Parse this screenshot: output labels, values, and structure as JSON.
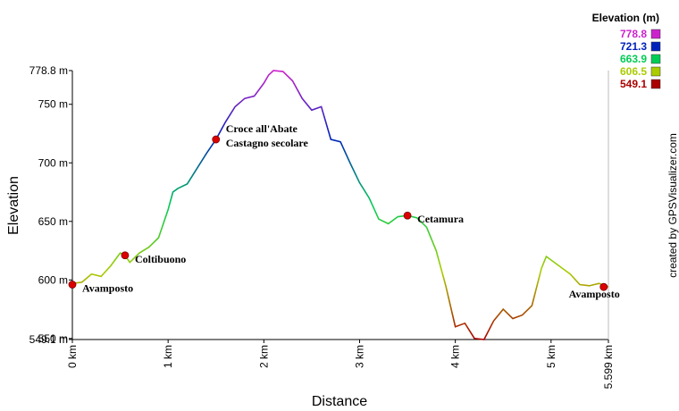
{
  "chart_data": {
    "type": "line",
    "x_label": "Distance",
    "y_label": "Elevation",
    "credit": "created by GPSVisualizer.com",
    "x": [
      0,
      0.1,
      0.2,
      0.3,
      0.4,
      0.5,
      0.55,
      0.6,
      0.7,
      0.8,
      0.9,
      1.0,
      1.05,
      1.1,
      1.2,
      1.3,
      1.4,
      1.5,
      1.6,
      1.7,
      1.8,
      1.9,
      2.0,
      2.05,
      2.1,
      2.2,
      2.3,
      2.4,
      2.5,
      2.6,
      2.7,
      2.8,
      2.9,
      3.0,
      3.1,
      3.2,
      3.3,
      3.4,
      3.5,
      3.6,
      3.7,
      3.8,
      3.9,
      4.0,
      4.1,
      4.2,
      4.3,
      4.4,
      4.5,
      4.6,
      4.7,
      4.8,
      4.9,
      4.95,
      5.0,
      5.1,
      5.2,
      5.3,
      5.4,
      5.5,
      5.599
    ],
    "values": [
      597,
      598,
      605,
      603,
      612,
      623,
      621,
      615,
      623,
      628,
      636,
      660,
      675,
      678,
      682,
      695,
      708,
      720,
      735,
      748,
      755,
      757,
      768,
      775,
      778.8,
      778,
      770,
      755,
      745,
      748,
      720,
      718,
      700,
      683,
      670,
      652,
      648,
      654,
      655,
      653,
      645,
      625,
      595,
      560,
      563,
      550,
      549.1,
      565,
      575,
      567,
      570,
      578,
      610,
      620,
      617,
      611,
      605,
      596,
      595,
      597,
      594
    ],
    "xlim": [
      0,
      5.599
    ],
    "xticks": [
      {
        "value": 0,
        "label": "0 km"
      },
      {
        "value": 1,
        "label": "1 km"
      },
      {
        "value": 2,
        "label": "2 km"
      },
      {
        "value": 3,
        "label": "3 km"
      },
      {
        "value": 4,
        "label": "4 km"
      },
      {
        "value": 5,
        "label": "5 km"
      },
      {
        "value": 5.599,
        "label": "5.599 km"
      }
    ],
    "ylim": [
      549.1,
      778.8
    ],
    "yticks": [
      {
        "value": 549.1,
        "label": "549.1 m"
      },
      {
        "value": 550,
        "label": "550 m"
      },
      {
        "value": 600,
        "label": "600 m"
      },
      {
        "value": 650,
        "label": "650 m"
      },
      {
        "value": 700,
        "label": "700 m"
      },
      {
        "value": 750,
        "label": "750 m"
      },
      {
        "value": 778.8,
        "label": "778.8 m"
      }
    ],
    "legend_title": "Elevation (m)",
    "color_scale": [
      {
        "value": 778.8,
        "color": "#cc22cc"
      },
      {
        "value": 721.3,
        "color": "#0022bb"
      },
      {
        "value": 663.9,
        "color": "#00cc55"
      },
      {
        "value": 606.5,
        "color": "#aacc00"
      },
      {
        "value": 549.1,
        "color": "#aa0000"
      }
    ],
    "waypoint_color": "#dd0000",
    "waypoints": [
      {
        "x": 0,
        "y": 596,
        "lines": [
          "Avamposto"
        ]
      },
      {
        "x": 0.55,
        "y": 621,
        "lines": [
          "Coltibuono"
        ]
      },
      {
        "x": 1.5,
        "y": 720,
        "lines": [
          "Croce all'Abate",
          "Castagno secolare"
        ]
      },
      {
        "x": 3.5,
        "y": 655,
        "lines": [
          "Cetamura"
        ]
      },
      {
        "x": 5.55,
        "y": 594,
        "lines": [
          "Avamposto"
        ]
      }
    ]
  }
}
